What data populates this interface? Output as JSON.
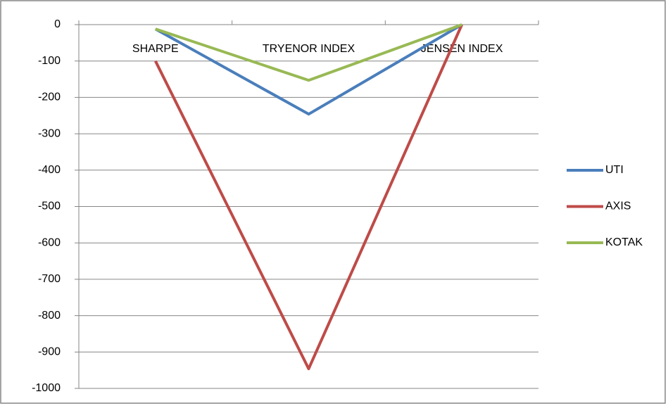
{
  "chart_data": {
    "type": "line",
    "categories": [
      "SHARPE",
      "TRYENOR INDEX",
      "JENSEN INDEX"
    ],
    "series": [
      {
        "name": "UTI",
        "color": "#4a7ebb",
        "values": [
          -12,
          -246,
          0
        ]
      },
      {
        "name": "AXIS",
        "color": "#be4b48",
        "values": [
          -100,
          -946,
          0
        ]
      },
      {
        "name": "KOTAK",
        "color": "#98b954",
        "values": [
          -12,
          -153,
          0
        ]
      }
    ],
    "ylim": [
      -1000,
      0
    ],
    "yticks": [
      0,
      -100,
      -200,
      -300,
      -400,
      -500,
      -600,
      -700,
      -800,
      -900,
      -1000
    ],
    "grid": true,
    "legend": "right"
  }
}
